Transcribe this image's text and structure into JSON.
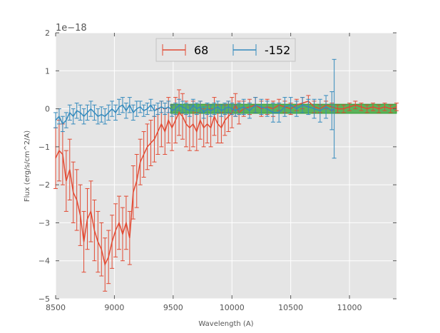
{
  "chart_data": {
    "type": "line",
    "title": "",
    "xlabel": "Wavelength (A)",
    "ylabel": "Flux (erg/s/cm^2/A)",
    "y_offset_label": "1e−18",
    "xlim": [
      8500,
      11400
    ],
    "ylim": [
      -5,
      2
    ],
    "xticks": [
      8500,
      9000,
      9500,
      10000,
      10500,
      11000
    ],
    "xtick_labels": [
      "8500",
      "9000",
      "9500",
      "10000",
      "10500",
      "11000"
    ],
    "yticks": [
      -5,
      -4,
      -3,
      -2,
      -1,
      0,
      1,
      2
    ],
    "ytick_labels": [
      "−5",
      "−4",
      "−3",
      "−2",
      "−1",
      "0",
      "1",
      "2"
    ],
    "grid": true,
    "legend_position": "top-center",
    "colors": {
      "series_68": "#e24a33",
      "series_m152": "#348abd",
      "band_fill": "#2ca02c",
      "plot_background": "#e5e5e5",
      "grid": "#ffffff"
    },
    "series": [
      {
        "name": "68",
        "color": "#e24a33",
        "x": [
          8500,
          8530,
          8560,
          8590,
          8620,
          8650,
          8680,
          8710,
          8740,
          8770,
          8800,
          8830,
          8860,
          8890,
          8920,
          8950,
          8980,
          9010,
          9040,
          9070,
          9100,
          9130,
          9160,
          9190,
          9220,
          9250,
          9280,
          9310,
          9340,
          9370,
          9400,
          9430,
          9460,
          9490,
          9520,
          9550,
          9580,
          9610,
          9640,
          9670,
          9700,
          9730,
          9760,
          9790,
          9820,
          9850,
          9880,
          9910,
          9940,
          9970,
          10000,
          10030,
          10060,
          10100,
          10150,
          10200,
          10250,
          10300,
          10350,
          10400,
          10450,
          10500,
          10550,
          10600,
          10650,
          10700,
          10750,
          10800,
          10850,
          10900,
          10950,
          11000,
          11050,
          11100,
          11150,
          11200,
          11250,
          11300,
          11350,
          11400
        ],
        "y": [
          -1.3,
          -1.1,
          -1.2,
          -1.9,
          -1.6,
          -2.2,
          -2.4,
          -2.8,
          -3.5,
          -2.9,
          -2.7,
          -3.2,
          -3.5,
          -3.7,
          -4.1,
          -3.9,
          -3.5,
          -3.2,
          -3.0,
          -3.3,
          -3.0,
          -3.4,
          -2.2,
          -1.9,
          -1.4,
          -1.2,
          -1.0,
          -0.9,
          -0.8,
          -0.6,
          -0.4,
          -0.6,
          -0.3,
          -0.5,
          -0.3,
          -0.1,
          -0.2,
          -0.4,
          -0.5,
          -0.4,
          -0.6,
          -0.3,
          -0.5,
          -0.4,
          -0.5,
          -0.2,
          -0.4,
          -0.5,
          -0.3,
          -0.2,
          -0.1,
          0.1,
          -0.1,
          0.0,
          0.05,
          0.1,
          0.0,
          0.05,
          0.0,
          0.1,
          0.05,
          0.0,
          0.1,
          0.15,
          0.2,
          0.05,
          0.0,
          0.1,
          0.05,
          0.0,
          0.0,
          0.05,
          0.1,
          0.05,
          0.0,
          0.05,
          0.0,
          0.05,
          0.0,
          0.05
        ],
        "yerr": [
          0.8,
          0.8,
          0.8,
          0.8,
          0.8,
          0.8,
          0.8,
          0.8,
          0.8,
          0.8,
          0.8,
          0.8,
          0.8,
          0.7,
          0.7,
          0.7,
          0.7,
          0.7,
          0.7,
          0.7,
          0.7,
          0.7,
          0.7,
          0.7,
          0.6,
          0.6,
          0.6,
          0.6,
          0.6,
          0.6,
          0.6,
          0.6,
          0.6,
          0.6,
          0.6,
          0.6,
          0.6,
          0.6,
          0.6,
          0.6,
          0.5,
          0.5,
          0.5,
          0.5,
          0.5,
          0.5,
          0.5,
          0.4,
          0.4,
          0.4,
          0.4,
          0.3,
          0.3,
          0.2,
          0.2,
          0.2,
          0.2,
          0.2,
          0.2,
          0.15,
          0.15,
          0.15,
          0.15,
          0.15,
          0.15,
          0.15,
          0.1,
          0.1,
          0.1,
          0.1,
          0.1,
          0.1,
          0.1,
          0.1,
          0.1,
          0.1,
          0.1,
          0.1,
          0.1,
          0.1
        ]
      },
      {
        "name": "-152",
        "color": "#348abd",
        "x": [
          8500,
          8530,
          8560,
          8590,
          8620,
          8650,
          8680,
          8710,
          8740,
          8770,
          8800,
          8830,
          8860,
          8890,
          8920,
          8950,
          8980,
          9010,
          9040,
          9070,
          9100,
          9130,
          9160,
          9190,
          9220,
          9250,
          9280,
          9310,
          9340,
          9370,
          9400,
          9430,
          9460,
          9490,
          9520,
          9550,
          9580,
          9610,
          9640,
          9670,
          9700,
          9730,
          9760,
          9790,
          9820,
          9850,
          9880,
          9910,
          9940,
          9970,
          10000,
          10030,
          10060,
          10100,
          10150,
          10200,
          10250,
          10300,
          10350,
          10400,
          10450,
          10500,
          10550,
          10600,
          10650,
          10700,
          10750,
          10800,
          10850,
          10870
        ],
        "y": [
          -0.3,
          -0.2,
          -0.4,
          -0.3,
          -0.1,
          -0.2,
          -0.05,
          -0.1,
          -0.2,
          -0.1,
          0.0,
          -0.1,
          -0.2,
          -0.15,
          -0.2,
          -0.1,
          0.0,
          -0.1,
          0.05,
          0.1,
          -0.05,
          0.1,
          -0.1,
          0.0,
          0.05,
          -0.05,
          0.0,
          0.1,
          -0.05,
          0.0,
          0.05,
          0.0,
          0.05,
          -0.05,
          0.0,
          0.1,
          0.05,
          0.0,
          -0.05,
          0.1,
          0.0,
          0.05,
          -0.1,
          0.0,
          -0.05,
          0.0,
          0.05,
          -0.05,
          0.0,
          0.05,
          0.0,
          -0.05,
          0.0,
          0.05,
          -0.05,
          0.1,
          0.05,
          0.0,
          -0.1,
          -0.1,
          0.05,
          0.1,
          0.0,
          0.1,
          0.05,
          0.0,
          -0.05,
          0.05,
          -0.05,
          0.0
        ],
        "yerr": [
          0.2,
          0.2,
          0.2,
          0.2,
          0.2,
          0.2,
          0.2,
          0.2,
          0.2,
          0.2,
          0.2,
          0.2,
          0.2,
          0.2,
          0.2,
          0.2,
          0.2,
          0.2,
          0.2,
          0.2,
          0.2,
          0.2,
          0.2,
          0.2,
          0.15,
          0.15,
          0.15,
          0.15,
          0.15,
          0.15,
          0.15,
          0.15,
          0.15,
          0.15,
          0.15,
          0.15,
          0.15,
          0.15,
          0.15,
          0.15,
          0.15,
          0.15,
          0.15,
          0.15,
          0.15,
          0.15,
          0.15,
          0.15,
          0.15,
          0.15,
          0.15,
          0.15,
          0.15,
          0.2,
          0.2,
          0.2,
          0.2,
          0.2,
          0.25,
          0.25,
          0.25,
          0.2,
          0.2,
          0.2,
          0.2,
          0.25,
          0.3,
          0.3,
          0.5,
          1.3
        ]
      }
    ],
    "band": {
      "x_range": [
        9480,
        11400
      ],
      "y_range": [
        -0.12,
        0.12
      ],
      "color": "#2ca02c"
    }
  }
}
